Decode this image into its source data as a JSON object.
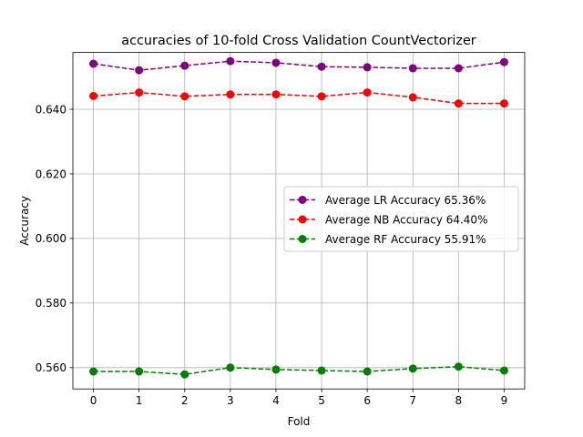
{
  "chart_data": {
    "type": "line",
    "title": "accuracies of 10-fold Cross Validation CountVectorizer",
    "xlabel": "Fold",
    "ylabel": "Accuracy",
    "x": [
      0,
      1,
      2,
      3,
      4,
      5,
      6,
      7,
      8,
      9
    ],
    "x_ticks": [
      "0",
      "1",
      "2",
      "3",
      "4",
      "5",
      "6",
      "7",
      "8",
      "9"
    ],
    "y_ticks": [
      0.56,
      0.58,
      0.6,
      0.62,
      0.64
    ],
    "y_tick_labels": [
      "0.560",
      "0.580",
      "0.600",
      "0.620",
      "0.640"
    ],
    "xlim": [
      -0.45,
      9.45
    ],
    "ylim": [
      0.5534,
      0.6576
    ],
    "grid": true,
    "legend_position": "center-right",
    "series": [
      {
        "name": "Average LR Accuracy 65.36%",
        "color": "#800080",
        "values": [
          0.6541,
          0.6521,
          0.6535,
          0.6549,
          0.6544,
          0.6532,
          0.653,
          0.6527,
          0.6527,
          0.6546
        ]
      },
      {
        "name": "Average NB Accuracy 64.40%",
        "color": "#ff0000",
        "values": [
          0.6441,
          0.6452,
          0.644,
          0.6446,
          0.6446,
          0.644,
          0.6452,
          0.6437,
          0.6418,
          0.6418
        ]
      },
      {
        "name": "Average RF Accuracy 55.91%",
        "color": "#008000",
        "values": [
          0.5588,
          0.5588,
          0.5579,
          0.56,
          0.5594,
          0.5591,
          0.5588,
          0.5597,
          0.5603,
          0.5591
        ]
      }
    ]
  }
}
